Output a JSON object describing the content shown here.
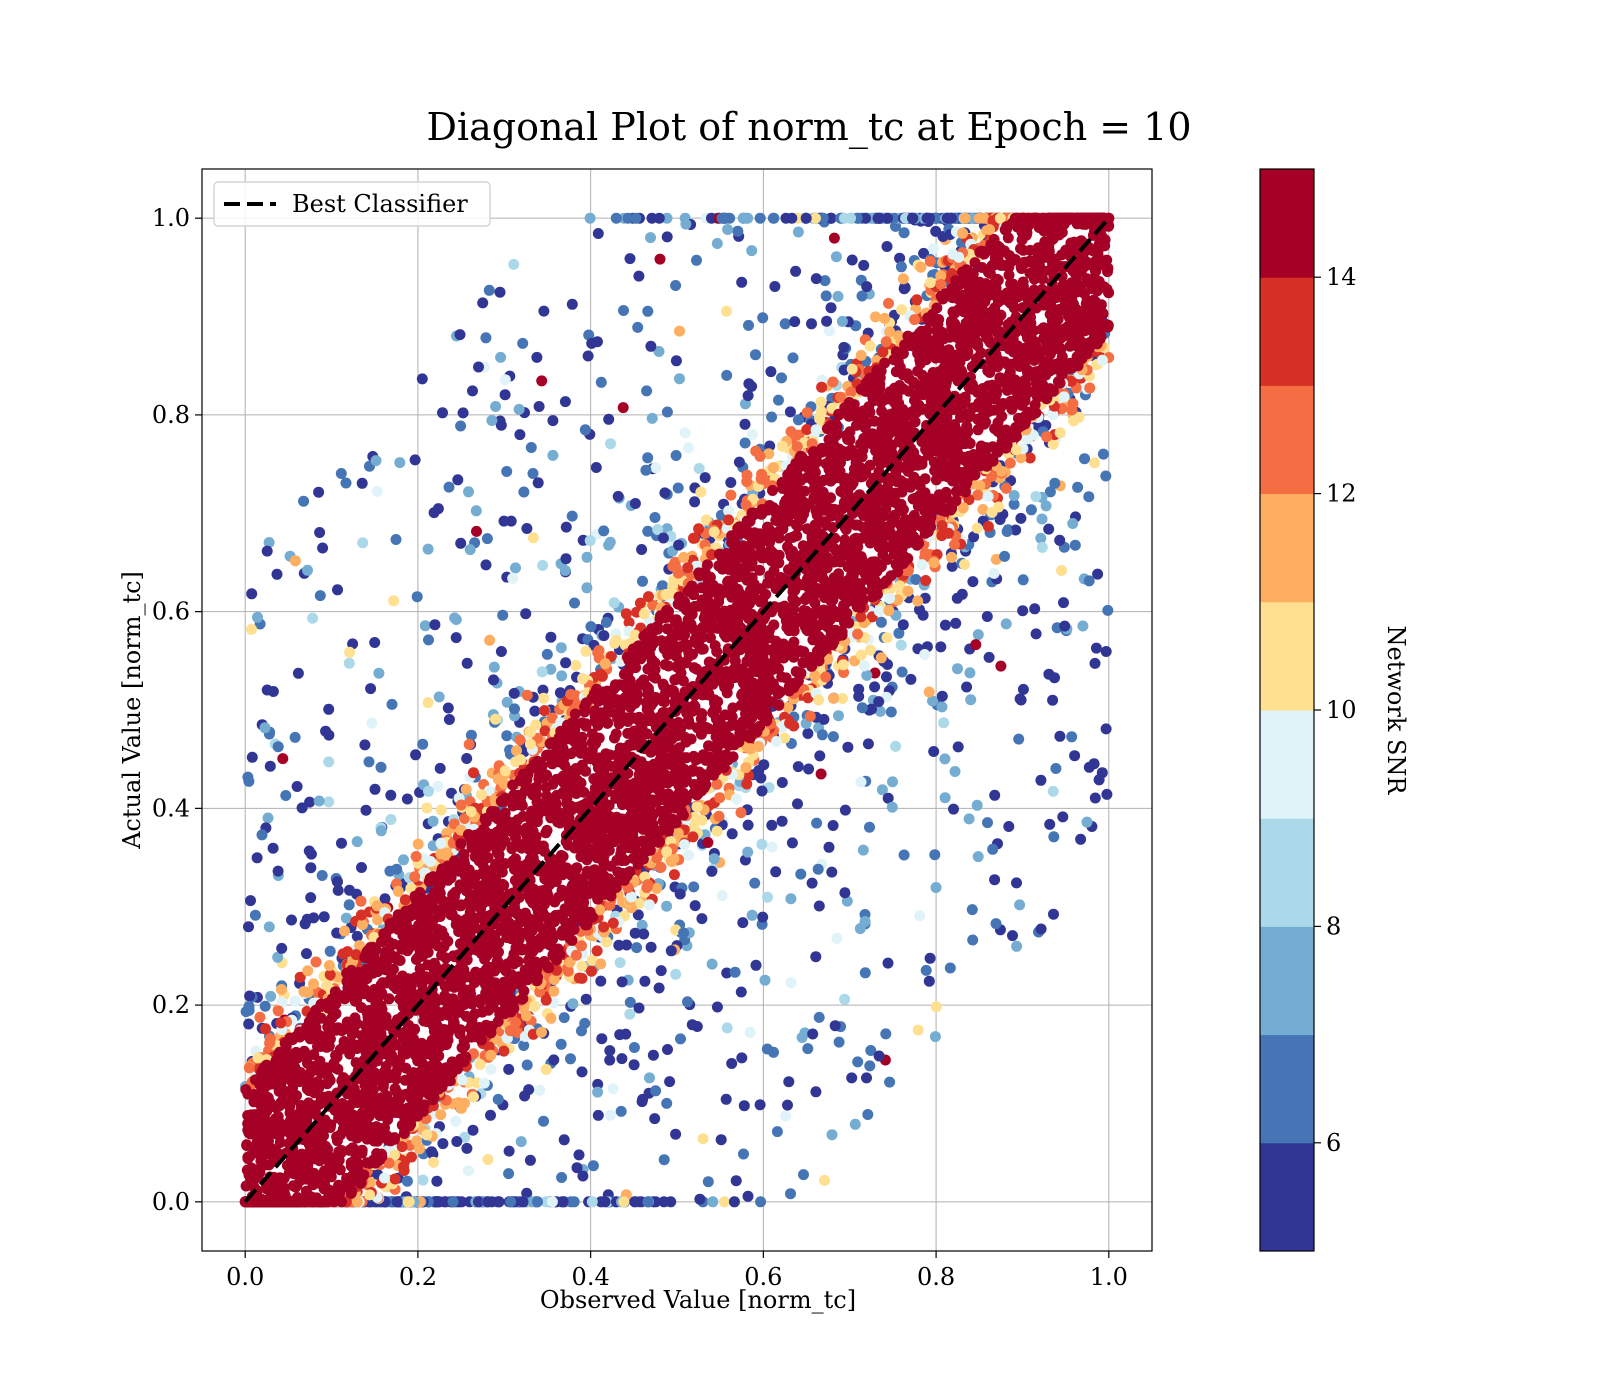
{
  "chart_data": {
    "type": "scatter",
    "title": "Diagonal Plot of norm_tc at Epoch = 10",
    "xlabel": "Observed Value [norm_tc]",
    "ylabel": "Actual Value [norm_tc]",
    "xlim": [
      -0.05,
      1.05
    ],
    "ylim": [
      -0.05,
      1.05
    ],
    "xticks": [
      "0.0",
      "0.2",
      "0.4",
      "0.6",
      "0.8",
      "1.0"
    ],
    "yticks": [
      "0.0",
      "0.2",
      "0.4",
      "0.6",
      "0.8",
      "1.0"
    ],
    "grid": true,
    "legend": {
      "position": "top-left",
      "entries": [
        "Best Classifier"
      ]
    },
    "reference_line": {
      "name": "Best Classifier",
      "style": "dashed",
      "color": "#000000",
      "x": [
        0,
        1
      ],
      "y": [
        0,
        1
      ]
    },
    "colorbar": {
      "label": "Network SNR",
      "range": [
        5,
        15
      ],
      "ticks": [
        "6",
        "8",
        "10",
        "12",
        "14"
      ],
      "colors": [
        "#313695",
        "#4575b4",
        "#74add1",
        "#abd9e9",
        "#e0f3f8",
        "#fee090",
        "#fdae61",
        "#f46d43",
        "#d73027",
        "#a50026"
      ]
    },
    "summary": {
      "dense_band": "points with Network SNR ≥ 14 lie in a tight band around y = x (width ≈ ±0.12)",
      "sparse_scatter": "low-SNR points (5–10) spread widely above and below the band, filling the unit square"
    }
  }
}
